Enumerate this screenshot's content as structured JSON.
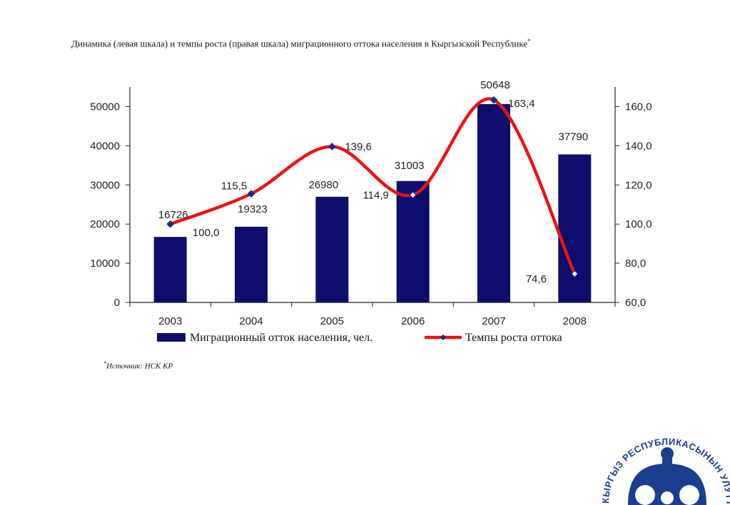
{
  "page": {
    "title": "Динамика (левая шкала) и темпы роста (правая шкала) миграционного оттока населения в Кыргызской Республике",
    "title_mark": "*",
    "source_mark": "*",
    "source": "Источник: НСК КР",
    "logo_text": "КЫРГЫЗ РЕСПУБЛИКАСЫНЫН УЛУТТУК БАНКЫ"
  },
  "chart_data": {
    "type": "bar",
    "categories": [
      "2003",
      "2004",
      "2005",
      "2006",
      "2007",
      "2008"
    ],
    "series": [
      {
        "name": "Миграционный отток населения, чел.",
        "type": "bar",
        "axis": "left",
        "values": [
          16726,
          19323,
          26980,
          31003,
          50648,
          37790
        ],
        "labels": [
          "16726",
          "19323",
          "26980",
          "31003",
          "50648",
          "37790"
        ],
        "color": "#0d0d6e"
      },
      {
        "name": "Темпы роста оттока",
        "type": "line",
        "axis": "right",
        "values": [
          100.0,
          115.5,
          139.6,
          114.9,
          163.4,
          74.6
        ],
        "labels": [
          "100,0",
          "115,5",
          "139,6",
          "114,9",
          "163,4",
          "74,6"
        ],
        "color": "#ee1111"
      }
    ],
    "left_axis": {
      "ylim": [
        0,
        55000
      ],
      "ticks": [
        0,
        10000,
        20000,
        30000,
        40000,
        50000
      ],
      "tick_labels": [
        "0",
        "10000",
        "20000",
        "30000",
        "40000",
        "50000"
      ]
    },
    "right_axis": {
      "ylim": [
        60,
        170
      ],
      "ticks": [
        60,
        80,
        100,
        120,
        140,
        160
      ],
      "tick_labels": [
        "60,0",
        "80,0",
        "100,0",
        "120,0",
        "140,0",
        "160,0"
      ]
    },
    "grid": false,
    "legend_position": "bottom"
  }
}
